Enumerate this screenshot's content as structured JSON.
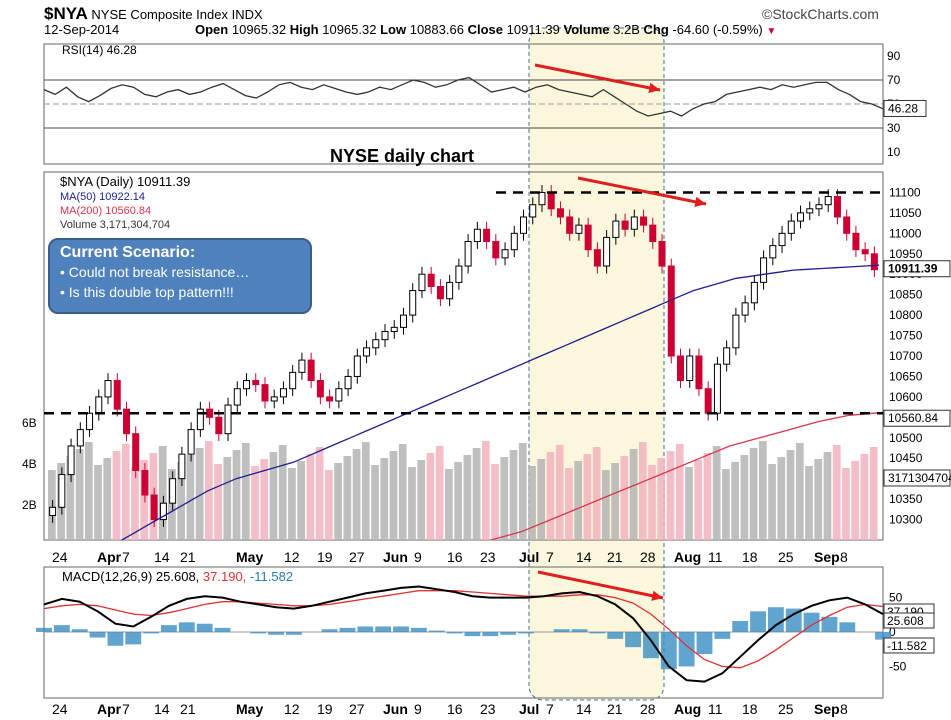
{
  "header": {
    "symbol": "$NYA",
    "name": "NYSE Composite Index",
    "exchange": "INDX",
    "brand": "©StockCharts.com",
    "date": "12-Sep-2014",
    "open_label": "Open",
    "open": "10965.32",
    "high_label": "High",
    "high": "10965.32",
    "low_label": "Low",
    "low": "10883.66",
    "close_label": "Close",
    "close": "10911.39",
    "volume_label": "Volume",
    "volume": "3.2B",
    "chg_label": "Chg",
    "chg": "-64.60 (-0.59%)"
  },
  "annotation": {
    "chart_title": "NYSE daily chart",
    "box_title": "Current Scenario:",
    "bullets": [
      "• Could not break resistance…",
      "• Is this double top pattern!!!"
    ]
  },
  "colors": {
    "up": "#000000",
    "down": "#cc0033",
    "ma50": "#1f1f8f",
    "ma200": "#d9354a",
    "vol_up": "#b4b4b4",
    "vol_down": "#f2b3bf",
    "macd_hist": "#3a8dc4",
    "highlight": "#faf7dc",
    "arrow": "#e01e1e"
  },
  "chart_data": [
    {
      "type": "line",
      "panel": "rsi",
      "title": "RSI(14) 46.28",
      "yticks": [
        10,
        30,
        50,
        70,
        90
      ],
      "ylim": [
        0,
        100
      ],
      "reference_lines": [
        30,
        50,
        70
      ],
      "last_value": "46.28",
      "values": [
        62,
        58,
        64,
        56,
        52,
        57,
        63,
        66,
        64,
        58,
        56,
        60,
        62,
        58,
        60,
        64,
        67,
        62,
        57,
        55,
        60,
        66,
        68,
        64,
        62,
        66,
        63,
        60,
        58,
        60,
        64,
        62,
        66,
        70,
        68,
        64,
        66,
        70,
        72,
        66,
        60,
        62,
        64,
        60,
        64,
        66,
        62,
        60,
        58,
        56,
        62,
        56,
        50,
        44,
        40,
        42,
        44,
        40,
        46,
        50,
        52,
        58,
        60,
        62,
        64,
        62,
        66,
        64,
        66,
        68,
        68,
        62,
        58,
        52,
        50,
        46
      ]
    },
    {
      "type": "candlestick",
      "panel": "price",
      "legend": [
        "$NYA (Daily) 10911.39",
        "MA(50) 10922.14",
        "MA(200) 10560.84",
        "Volume 3,171,304,704"
      ],
      "ylim": [
        10250,
        11150
      ],
      "yticks": [
        10300,
        10350,
        10400,
        10450,
        10500,
        10550,
        10600,
        10650,
        10700,
        10750,
        10800,
        10850,
        10900,
        10950,
        11000,
        11050,
        11100
      ],
      "resistance": 11100,
      "support": 10565,
      "price_badges": [
        "10911.39",
        "10560.84",
        "3171304704"
      ],
      "volume_ticks": [
        "2B",
        "4B",
        "6B"
      ],
      "x_ticks": [
        "24",
        "Apr",
        "7",
        "14",
        "21",
        "May",
        "12",
        "19",
        "27",
        "Jun",
        "9",
        "16",
        "23",
        "Jul",
        "7",
        "14",
        "21",
        "28",
        "Aug",
        "11",
        "18",
        "25",
        "Sep",
        "8"
      ],
      "closes": [
        10330,
        10410,
        10480,
        10520,
        10560,
        10600,
        10640,
        10570,
        10510,
        10420,
        10360,
        10300,
        10340,
        10400,
        10460,
        10520,
        10570,
        10550,
        10510,
        10580,
        10620,
        10640,
        10630,
        10590,
        10600,
        10620,
        10660,
        10690,
        10640,
        10600,
        10590,
        10620,
        10650,
        10700,
        10720,
        10740,
        10760,
        10770,
        10800,
        10860,
        10900,
        10870,
        10840,
        10880,
        10920,
        10980,
        11010,
        10980,
        10940,
        10960,
        11000,
        11040,
        11070,
        11100,
        11060,
        11040,
        11000,
        11020,
        10960,
        10920,
        10990,
        11030,
        11010,
        11040,
        11020,
        10980,
        10920,
        10700,
        10640,
        10700,
        10620,
        10560,
        10680,
        10720,
        10800,
        10830,
        10880,
        10940,
        10970,
        11000,
        11030,
        11050,
        11060,
        11070,
        11090,
        11040,
        11000,
        10960,
        10950,
        10911
      ],
      "ma50": [
        10250,
        10270,
        10290,
        10310,
        10330,
        10350,
        10370,
        10385,
        10400,
        10410,
        10420,
        10430,
        10440,
        10455,
        10470,
        10485,
        10500,
        10515,
        10530,
        10545,
        10560,
        10575,
        10590,
        10605,
        10620,
        10635,
        10650,
        10665,
        10680,
        10695,
        10710,
        10725,
        10740,
        10755,
        10770,
        10785,
        10800,
        10815,
        10830,
        10845,
        10860,
        10870,
        10880,
        10890,
        10895,
        10900,
        10905,
        10910,
        10912,
        10914,
        10916,
        10918,
        10920,
        10922
      ],
      "ma200": [
        10250,
        10270,
        10300,
        10330,
        10360,
        10390,
        10420,
        10450,
        10480,
        10500,
        10520,
        10540,
        10555,
        10561
      ]
    },
    {
      "type": "line",
      "panel": "macd",
      "title": "MACD(12,26,9)",
      "macd": "25.608",
      "signal": "37.190",
      "histogram": "-11.582",
      "yticks": [
        -50,
        0,
        50
      ],
      "ylim": [
        -90,
        90
      ],
      "price_badges": [
        "37.190",
        "25.608",
        "-11.582"
      ],
      "x_ticks": [
        "24",
        "Apr",
        "7",
        "14",
        "21",
        "May",
        "12",
        "19",
        "27",
        "Jun",
        "9",
        "16",
        "23",
        "Jul",
        "7",
        "14",
        "21",
        "28",
        "Aug",
        "11",
        "18",
        "25",
        "Sep",
        "8"
      ],
      "macd_values": [
        40,
        48,
        44,
        30,
        12,
        8,
        22,
        38,
        48,
        52,
        50,
        44,
        40,
        36,
        34,
        38,
        44,
        50,
        56,
        60,
        64,
        66,
        62,
        58,
        52,
        50,
        50,
        50,
        52,
        56,
        58,
        52,
        40,
        20,
        -12,
        -50,
        -70,
        -72,
        -60,
        -36,
        -12,
        10,
        26,
        38,
        46,
        50,
        40,
        26
      ],
      "signal_values": [
        34,
        38,
        40,
        38,
        32,
        26,
        24,
        28,
        34,
        40,
        44,
        44,
        42,
        40,
        38,
        38,
        40,
        44,
        48,
        52,
        56,
        60,
        60,
        60,
        58,
        56,
        54,
        52,
        52,
        52,
        54,
        54,
        50,
        42,
        26,
        4,
        -20,
        -40,
        -50,
        -52,
        -42,
        -26,
        -8,
        10,
        24,
        36,
        40,
        37
      ]
    }
  ]
}
